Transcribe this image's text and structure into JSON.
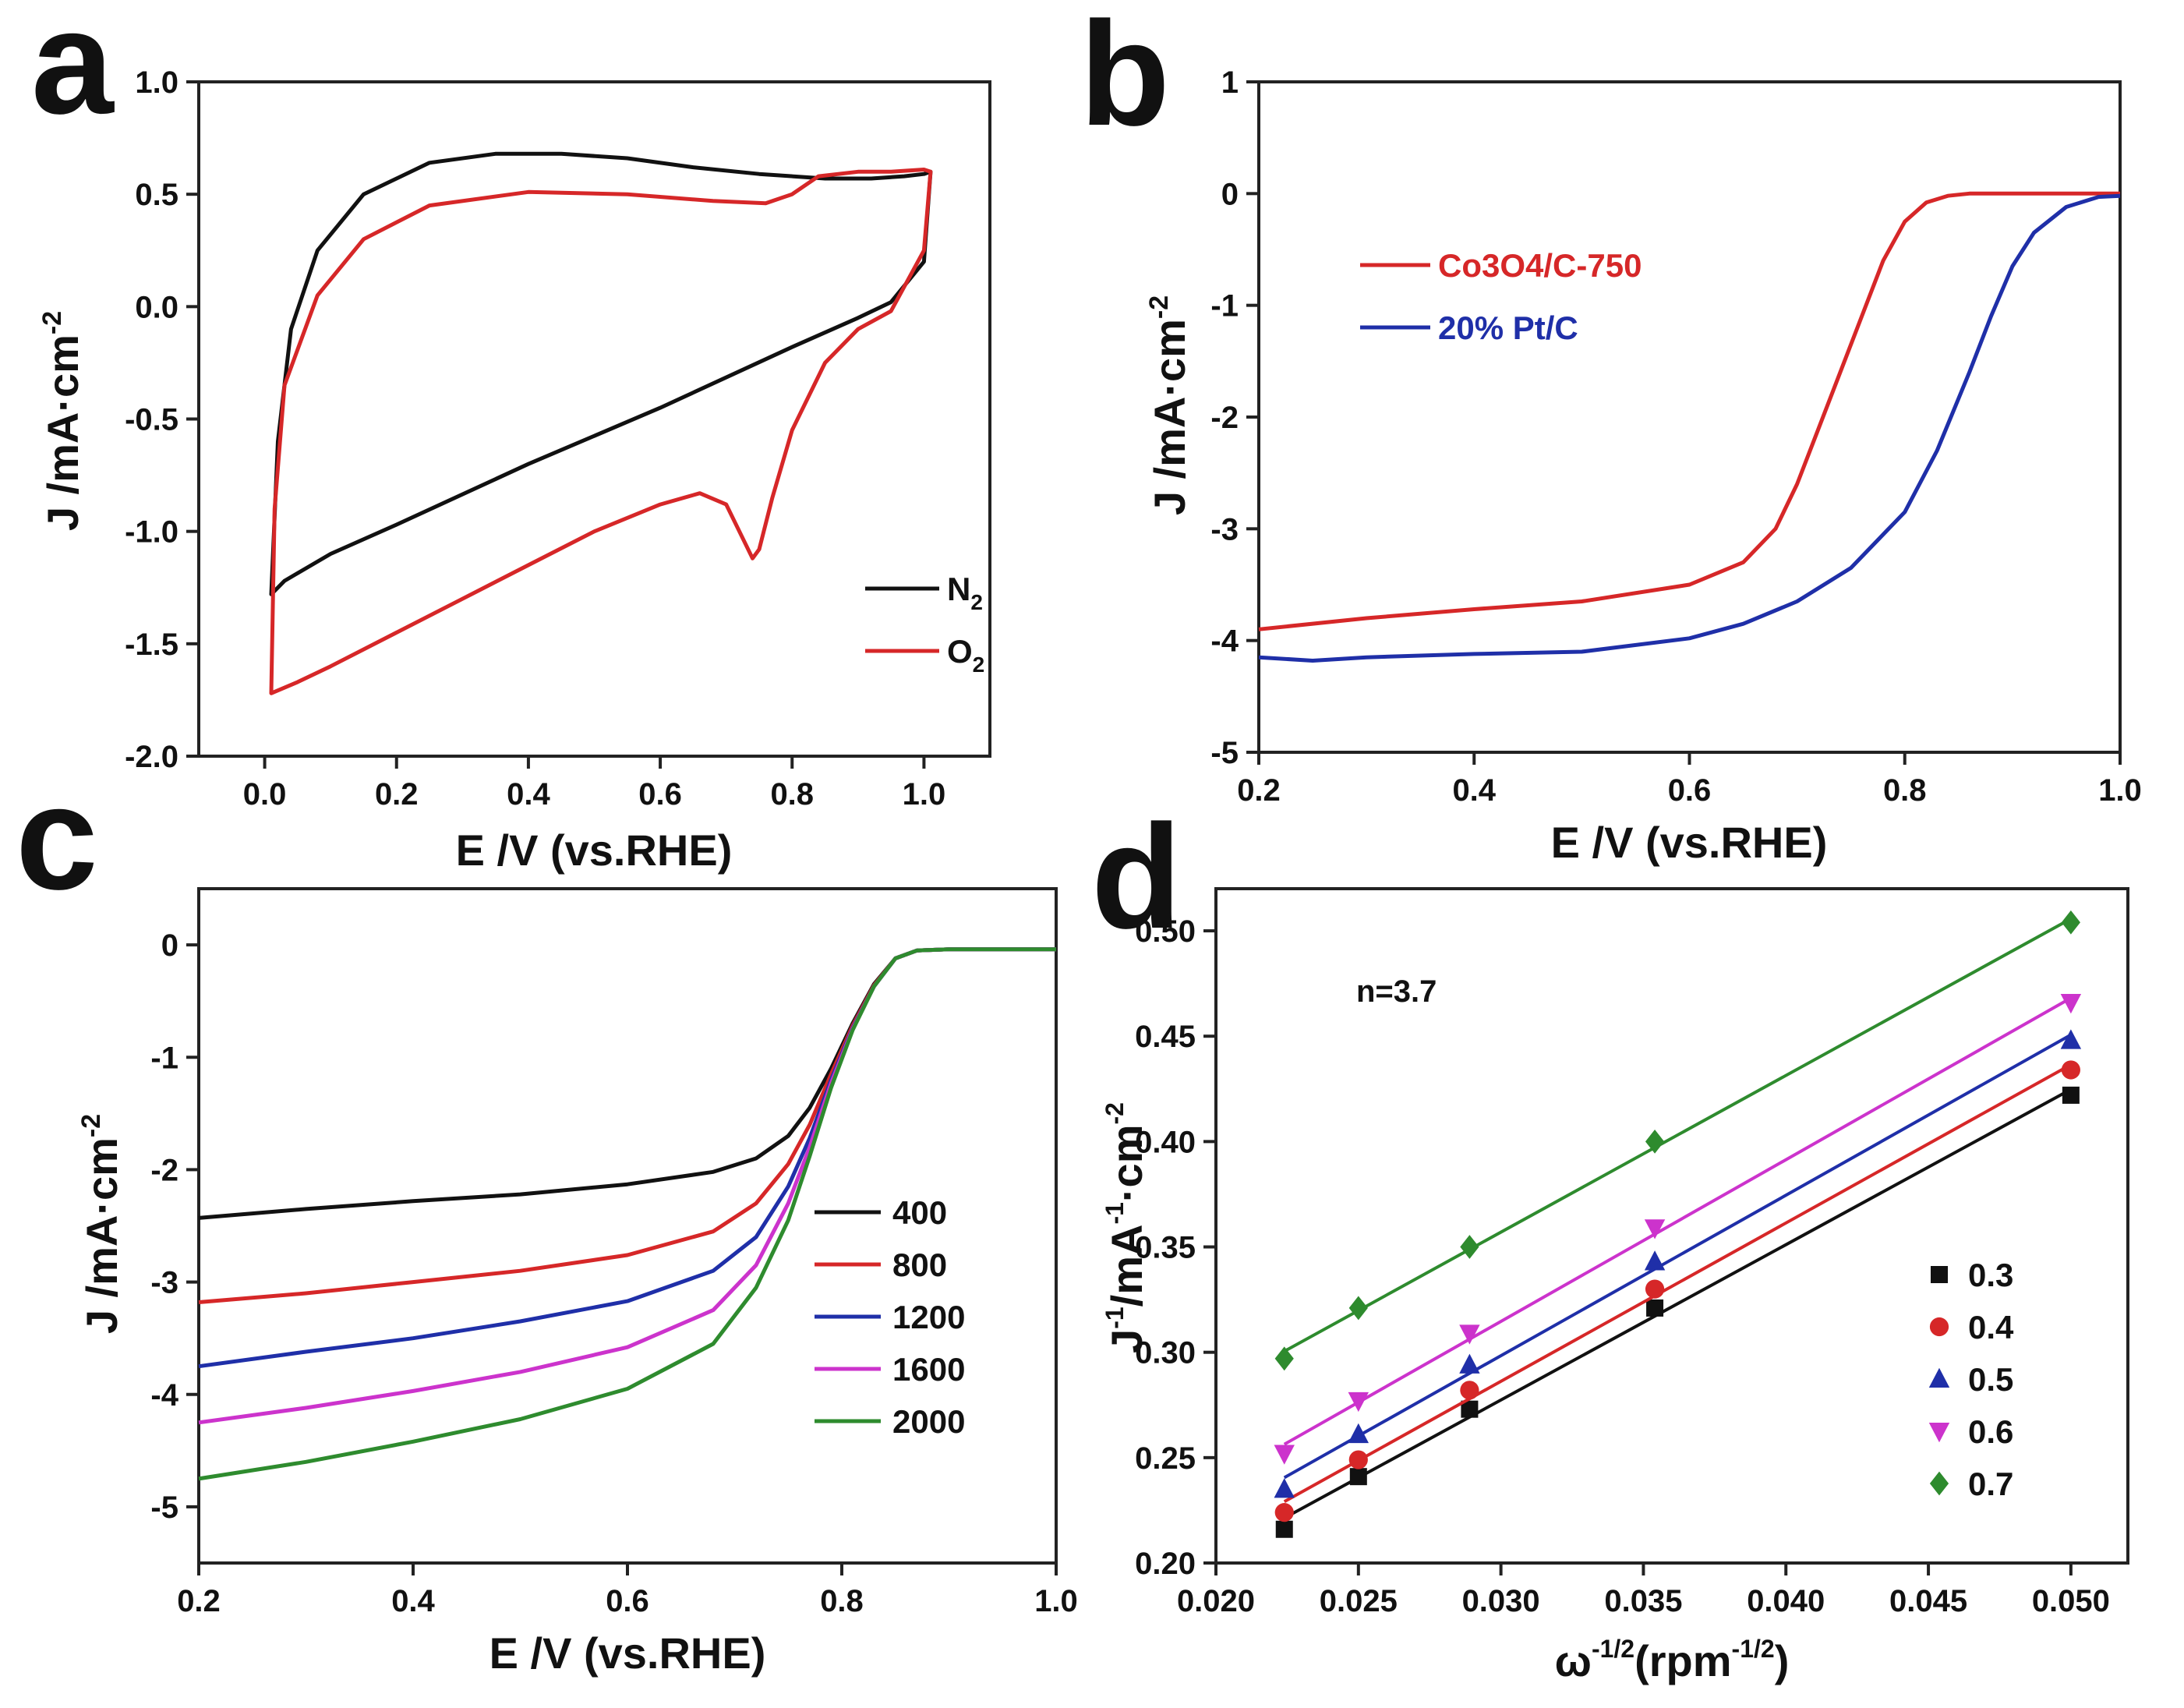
{
  "chart_data": [
    {
      "id": "a",
      "type": "line",
      "panel_letter": "a",
      "xlabel": "E /V (vs.RHE)",
      "ylabel": "J /mA·cm",
      "ylabel_sup": "-2",
      "xlim": [
        -0.1,
        1.1
      ],
      "ylim": [
        -2.0,
        1.0
      ],
      "xticks": [
        0.0,
        0.2,
        0.4,
        0.6,
        0.8,
        1.0
      ],
      "xtick_labels": [
        "0.0",
        "0.2",
        "0.4",
        "0.6",
        "0.8",
        "1.0"
      ],
      "yticks": [
        -2.0,
        -1.5,
        -1.0,
        -0.5,
        0.0,
        0.5,
        1.0
      ],
      "ytick_labels": [
        "-2.0",
        "-1.5",
        "-1.0",
        "-0.5",
        "0.0",
        "0.5",
        "1.0"
      ],
      "legend_position": "bottom-right",
      "series": [
        {
          "name": "N",
          "sub": "2",
          "color": "#111111",
          "closed": true,
          "x": [
            0.01,
            0.02,
            0.04,
            0.08,
            0.15,
            0.25,
            0.35,
            0.45,
            0.55,
            0.65,
            0.75,
            0.85,
            0.92,
            0.97,
            1.0,
            1.01,
            1.0,
            0.95,
            0.9,
            0.8,
            0.6,
            0.4,
            0.2,
            0.1,
            0.03,
            0.01
          ],
          "y": [
            -1.28,
            -0.6,
            -0.1,
            0.25,
            0.5,
            0.64,
            0.68,
            0.68,
            0.66,
            0.62,
            0.59,
            0.57,
            0.57,
            0.58,
            0.59,
            0.6,
            0.2,
            0.02,
            -0.05,
            -0.18,
            -0.45,
            -0.7,
            -0.97,
            -1.1,
            -1.22,
            -1.28
          ]
        },
        {
          "name": "O",
          "sub": "2",
          "color": "#d62728",
          "closed": true,
          "x": [
            0.01,
            0.015,
            0.03,
            0.08,
            0.15,
            0.25,
            0.4,
            0.55,
            0.68,
            0.76,
            0.8,
            0.84,
            0.9,
            0.95,
            1.0,
            1.01,
            1.0,
            0.95,
            0.9,
            0.85,
            0.8,
            0.77,
            0.75,
            0.74,
            0.72,
            0.7,
            0.66,
            0.6,
            0.5,
            0.4,
            0.3,
            0.2,
            0.1,
            0.05,
            0.01
          ],
          "y": [
            -1.72,
            -0.9,
            -0.35,
            0.05,
            0.3,
            0.45,
            0.51,
            0.5,
            0.47,
            0.46,
            0.5,
            0.58,
            0.6,
            0.6,
            0.61,
            0.6,
            0.25,
            -0.02,
            -0.1,
            -0.25,
            -0.55,
            -0.85,
            -1.08,
            -1.12,
            -1.0,
            -0.88,
            -0.83,
            -0.88,
            -1.0,
            -1.15,
            -1.3,
            -1.45,
            -1.6,
            -1.67,
            -1.72
          ]
        }
      ]
    },
    {
      "id": "b",
      "type": "line",
      "panel_letter": "b",
      "xlabel": "E /V (vs.RHE)",
      "ylabel": "J /mA·cm",
      "ylabel_sup": "-2",
      "xlim": [
        0.2,
        1.0
      ],
      "ylim": [
        -5,
        1
      ],
      "xticks": [
        0.2,
        0.4,
        0.6,
        0.8,
        1.0
      ],
      "xtick_labels": [
        "0.2",
        "0.4",
        "0.6",
        "0.8",
        "1.0"
      ],
      "yticks": [
        -5,
        -4,
        -3,
        -2,
        -1,
        0,
        1
      ],
      "ytick_labels": [
        "-5",
        "-4",
        "-3",
        "-2",
        "-1",
        "0",
        "1"
      ],
      "legend_position": "upper-left",
      "series": [
        {
          "name": "Co3O4/C-750",
          "color": "#d62728",
          "x": [
            0.2,
            0.3,
            0.4,
            0.5,
            0.6,
            0.65,
            0.68,
            0.7,
            0.72,
            0.74,
            0.76,
            0.78,
            0.8,
            0.82,
            0.84,
            0.86,
            0.9,
            0.95,
            1.0
          ],
          "y": [
            -3.9,
            -3.8,
            -3.72,
            -3.65,
            -3.5,
            -3.3,
            -3.0,
            -2.6,
            -2.1,
            -1.6,
            -1.1,
            -0.6,
            -0.25,
            -0.08,
            -0.02,
            0.0,
            0.0,
            0.0,
            0.0
          ]
        },
        {
          "name": "20% Pt/C",
          "color": "#1f2fa8",
          "x": [
            0.2,
            0.25,
            0.3,
            0.4,
            0.5,
            0.6,
            0.65,
            0.7,
            0.75,
            0.8,
            0.83,
            0.86,
            0.88,
            0.9,
            0.92,
            0.95,
            0.98,
            1.0
          ],
          "y": [
            -4.15,
            -4.18,
            -4.15,
            -4.12,
            -4.1,
            -3.98,
            -3.85,
            -3.65,
            -3.35,
            -2.85,
            -2.3,
            -1.6,
            -1.1,
            -0.65,
            -0.35,
            -0.12,
            -0.03,
            -0.02
          ]
        }
      ]
    },
    {
      "id": "c",
      "type": "line",
      "panel_letter": "c",
      "xlabel": "E /V (vs.RHE)",
      "ylabel": "J /mA·cm",
      "ylabel_sup": "-2",
      "xlim": [
        0.2,
        1.0
      ],
      "ylim": [
        -5.5,
        0.5
      ],
      "xticks": [
        0.2,
        0.4,
        0.6,
        0.8,
        1.0
      ],
      "xtick_labels": [
        "0.2",
        "0.4",
        "0.6",
        "0.8",
        "1.0"
      ],
      "yticks": [
        -5,
        -4,
        -3,
        -2,
        -1,
        0
      ],
      "ytick_labels": [
        "-5",
        "-4",
        "-3",
        "-2",
        "-1",
        "0"
      ],
      "legend_position": "center-right",
      "series": [
        {
          "name": "400",
          "color": "#111111",
          "x": [
            0.2,
            0.3,
            0.4,
            0.5,
            0.6,
            0.68,
            0.72,
            0.75,
            0.77,
            0.79,
            0.81,
            0.83,
            0.85,
            0.87,
            0.9,
            1.0
          ],
          "y": [
            -2.43,
            -2.35,
            -2.28,
            -2.22,
            -2.13,
            -2.02,
            -1.9,
            -1.7,
            -1.45,
            -1.1,
            -0.7,
            -0.35,
            -0.12,
            -0.05,
            -0.04,
            -0.04
          ]
        },
        {
          "name": "800",
          "color": "#d62728",
          "x": [
            0.2,
            0.3,
            0.4,
            0.5,
            0.6,
            0.68,
            0.72,
            0.75,
            0.77,
            0.79,
            0.81,
            0.83,
            0.85,
            0.87,
            0.9,
            1.0
          ],
          "y": [
            -3.18,
            -3.1,
            -3.0,
            -2.9,
            -2.76,
            -2.55,
            -2.3,
            -1.95,
            -1.6,
            -1.15,
            -0.72,
            -0.36,
            -0.12,
            -0.05,
            -0.04,
            -0.04
          ]
        },
        {
          "name": "1200",
          "color": "#1f2fa8",
          "x": [
            0.2,
            0.3,
            0.4,
            0.5,
            0.6,
            0.68,
            0.72,
            0.75,
            0.77,
            0.79,
            0.81,
            0.83,
            0.85,
            0.87,
            0.9,
            1.0
          ],
          "y": [
            -3.75,
            -3.62,
            -3.5,
            -3.35,
            -3.17,
            -2.9,
            -2.6,
            -2.15,
            -1.72,
            -1.2,
            -0.74,
            -0.37,
            -0.12,
            -0.05,
            -0.04,
            -0.04
          ]
        },
        {
          "name": "1600",
          "color": "#cc33cc",
          "x": [
            0.2,
            0.3,
            0.4,
            0.5,
            0.6,
            0.68,
            0.72,
            0.75,
            0.77,
            0.79,
            0.81,
            0.83,
            0.85,
            0.87,
            0.9,
            1.0
          ],
          "y": [
            -4.25,
            -4.12,
            -3.97,
            -3.8,
            -3.58,
            -3.25,
            -2.85,
            -2.3,
            -1.8,
            -1.23,
            -0.75,
            -0.37,
            -0.12,
            -0.05,
            -0.04,
            -0.04
          ]
        },
        {
          "name": "2000",
          "color": "#2e8b2e",
          "x": [
            0.2,
            0.3,
            0.4,
            0.5,
            0.6,
            0.68,
            0.72,
            0.75,
            0.77,
            0.79,
            0.81,
            0.83,
            0.85,
            0.87,
            0.9,
            1.0
          ],
          "y": [
            -4.75,
            -4.6,
            -4.42,
            -4.22,
            -3.95,
            -3.55,
            -3.05,
            -2.45,
            -1.88,
            -1.27,
            -0.76,
            -0.37,
            -0.12,
            -0.05,
            -0.04,
            -0.04
          ]
        }
      ]
    },
    {
      "id": "d",
      "type": "scatter",
      "panel_letter": "d",
      "xlabel": "ω",
      "xlabel_sup": "-1/2",
      "xlabel_tail": "(rpm",
      "xlabel_tail_sup": "-1/2",
      "xlabel_end": ")",
      "ylabel_pre": "J",
      "ylabel_sup1": "-1",
      "ylabel_mid": "/mA",
      "ylabel_sup2": "-1",
      "ylabel_mid2": "·cm",
      "ylabel_sup3": "-2",
      "annotation": "n=3.7",
      "xlim": [
        0.02,
        0.052
      ],
      "ylim": [
        0.2,
        0.52
      ],
      "xticks": [
        0.02,
        0.025,
        0.03,
        0.035,
        0.04,
        0.045,
        0.05
      ],
      "xtick_labels": [
        "0.020",
        "0.025",
        "0.030",
        "0.035",
        "0.040",
        "0.045",
        "0.050"
      ],
      "yticks": [
        0.2,
        0.25,
        0.3,
        0.35,
        0.4,
        0.45,
        0.5
      ],
      "ytick_labels": [
        "0.20",
        "0.25",
        "0.30",
        "0.35",
        "0.40",
        "0.45",
        "0.50"
      ],
      "legend_position": "center-right",
      "x": [
        0.0224,
        0.025,
        0.0289,
        0.0354,
        0.05
      ],
      "series": [
        {
          "name": "0.3",
          "color": "#111111",
          "marker": "square",
          "y": [
            0.216,
            0.241,
            0.273,
            0.321,
            0.422
          ]
        },
        {
          "name": "0.4",
          "color": "#d62728",
          "marker": "circle",
          "y": [
            0.224,
            0.249,
            0.282,
            0.33,
            0.434
          ]
        },
        {
          "name": "0.5",
          "color": "#1f2fa8",
          "marker": "triangle-up",
          "y": [
            0.235,
            0.261,
            0.294,
            0.343,
            0.448
          ]
        },
        {
          "name": "0.6",
          "color": "#cc33cc",
          "marker": "triangle-down",
          "y": [
            0.252,
            0.277,
            0.309,
            0.359,
            0.466
          ]
        },
        {
          "name": "0.7",
          "color": "#2e8b2e",
          "marker": "diamond",
          "y": [
            0.297,
            0.321,
            0.35,
            0.4,
            0.504
          ]
        }
      ]
    }
  ]
}
